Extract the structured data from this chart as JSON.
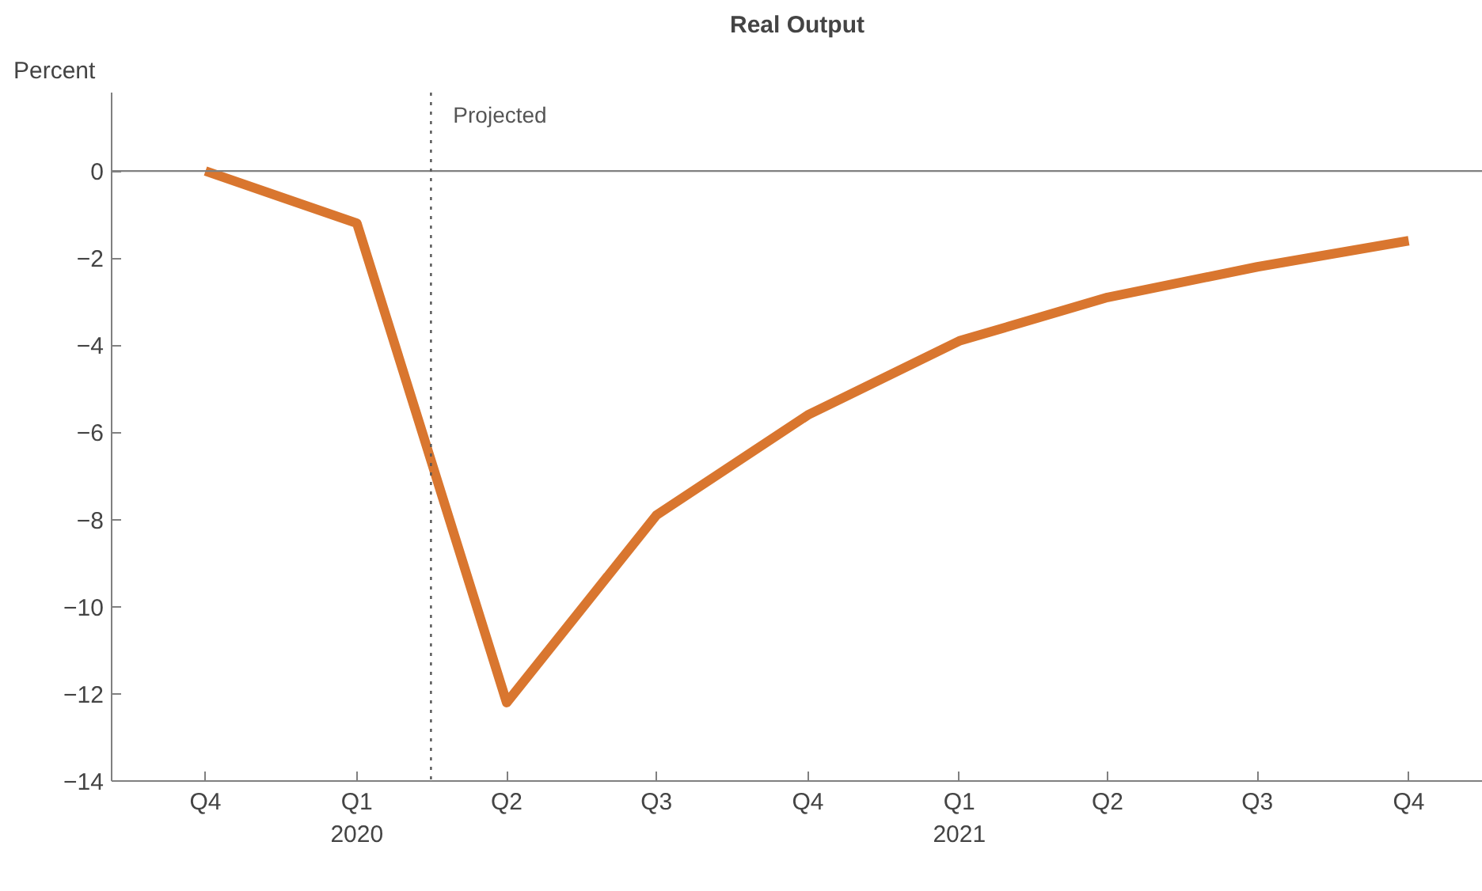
{
  "chart_data": {
    "type": "line",
    "title": "Real Output",
    "ylabel": "Percent",
    "x": [
      "2019-10",
      "2020-01",
      "2020-04",
      "2020-07",
      "2020-10",
      "2021-01",
      "2021-04",
      "2021-07",
      "2021-10"
    ],
    "series": [
      {
        "color": "#d9762f",
        "values": [
          0,
          -1.2,
          -12.2,
          -7.9,
          -5.6,
          -3.9,
          -2.9,
          -2.2,
          -1.6
        ]
      }
    ],
    "xlim": [
      "2019-08-05",
      "2021-11-15"
    ],
    "xticks": [
      {
        "value": "2019-10",
        "label": "Q4"
      },
      {
        "value": "2020-01",
        "label": "Q1\n2020"
      },
      {
        "value": "2020-04",
        "label": "Q2"
      },
      {
        "value": "2020-07",
        "label": "Q3"
      },
      {
        "value": "2020-10",
        "label": "Q4"
      },
      {
        "value": "2021-01",
        "label": "Q1\n2021"
      },
      {
        "value": "2021-04",
        "label": "Q2"
      },
      {
        "value": "2021-07",
        "label": "Q3"
      },
      {
        "value": "2021-10",
        "label": "Q4"
      }
    ],
    "ylim": [
      -14,
      1.8
    ],
    "yticks": [
      0,
      -2,
      -4,
      -6,
      -8,
      -10,
      -12,
      -14
    ],
    "ref_lines": [
      {
        "axis": "y",
        "value": 0,
        "color": "#808080",
        "line_style": "solid"
      },
      {
        "axis": "x",
        "value": "2020-02-15",
        "label": "Projected",
        "color": "#555555",
        "line_style": "dotted"
      }
    ],
    "grid": false,
    "marker": "none",
    "line_style": "solid"
  }
}
